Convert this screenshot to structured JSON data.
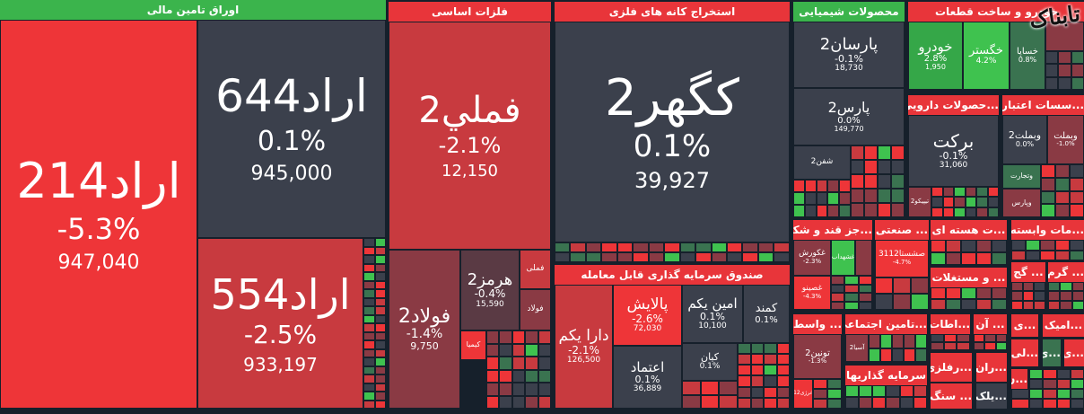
{
  "colors": {
    "up": "#3fc24f",
    "down": "#ee3538",
    "neutral": "#3b404c",
    "header_green": "#3bb44c",
    "header_red": "#e8353a"
  },
  "logo": "تابناک",
  "sectors": {
    "finance": {
      "title": "اوراق تامین مالی",
      "tiles": [
        {
          "name": "اراد214",
          "change": "-5.3%",
          "value": "947,040"
        },
        {
          "name": "اراد644",
          "change": "0.1%",
          "value": "945,000"
        },
        {
          "name": "اراد554",
          "change": "-2.5%",
          "value": "933,197"
        }
      ]
    },
    "metals": {
      "title": "فلزات اساسی",
      "tiles": [
        {
          "name": "فملي2",
          "change": "-2.1%",
          "value": "12,150"
        },
        {
          "name": "فولاد2",
          "change": "-1.4%",
          "value": "9,750"
        },
        {
          "name": "هرمز2",
          "change": "-0.4%",
          "value": "15,590"
        },
        {
          "name": "فملی"
        },
        {
          "name": "فولاد"
        },
        {
          "name": "کیمیا"
        }
      ]
    },
    "mining": {
      "title": "استخراج کانه های فلزی",
      "tiles": [
        {
          "name": "کگهر2",
          "change": "0.1%",
          "value": "39,927"
        }
      ]
    },
    "etf": {
      "title": "صندوق سرمایه گذاری قابل معامله",
      "tiles": [
        {
          "name": "دارا یکم",
          "change": "-2.1%",
          "value": "126,500"
        },
        {
          "name": "پالایش",
          "change": "-2.6%",
          "value": "72,030"
        },
        {
          "name": "امین یکم",
          "change": "0.1%",
          "value": "10,100"
        },
        {
          "name": "کمند",
          "change": "0.1%"
        },
        {
          "name": "اعتماد",
          "change": "0.1%",
          "value": "36,889"
        },
        {
          "name": "کیان",
          "change": "0.1%"
        }
      ]
    },
    "chemical": {
      "title": "محصولات شیمیایی",
      "tiles": [
        {
          "name": "پارسان2",
          "change": "-0.1%",
          "value": "18,730"
        },
        {
          "name": "پارس2",
          "change": "0.0%",
          "value": "149,770"
        },
        {
          "name": "شفن2"
        }
      ]
    },
    "auto": {
      "title": "خودرو و ساخت قطعات",
      "tiles": [
        {
          "name": "خودرو",
          "change": "2.8%",
          "value": "1,950"
        },
        {
          "name": "خگستر",
          "change": "4.2%"
        },
        {
          "name": "خساپا",
          "change": "0.8%"
        }
      ]
    },
    "pharma": {
      "title": "...حصولات دارویی",
      "tiles": [
        {
          "name": "برکت",
          "change": "-0.1%",
          "value": "31,060"
        },
        {
          "name": "تیپیکو2"
        }
      ]
    },
    "banks": {
      "title": "...سسات اعتباری",
      "tiles": [
        {
          "name": "وبملت2",
          "change": "0.0%"
        },
        {
          "name": "وبملت",
          "change": "-1.0%"
        },
        {
          "name": "وتجارت"
        },
        {
          "name": "وپارس"
        }
      ]
    },
    "sugar": {
      "title": "...جز قند و شکر",
      "tiles": [
        {
          "name": "غکورش",
          "change": "-2.3%"
        },
        {
          "name": "غشهداب"
        },
        {
          "name": "غصینو",
          "change": "-4.3%"
        }
      ]
    },
    "industrial": {
      "title": "... صنعتی",
      "tiles": [
        {
          "name": "صشستا3112",
          "change": "-4.7%"
        }
      ]
    },
    "nuclear": {
      "title": "...ت هسته ای"
    },
    "related": {
      "title": "...مات وابسته"
    },
    "realestate": {
      "title": "... و مستغلات"
    },
    "gach": {
      "title": "... گج"
    },
    "garm": {
      "title": "... گرم"
    },
    "wasat": {
      "title": "... واسط",
      "tiles": [
        {
          "name": "تونین2",
          "change": "-1.3%"
        },
        {
          "name": "انرژی12"
        }
      ]
    },
    "social": {
      "title": "...تامین اجتماعی",
      "tiles": [
        {
          "name": "آسیا2"
        }
      ]
    },
    "investment": {
      "title": "سرمایه گذاریها"
    },
    "telecom": {
      "title": "...اطات"
    },
    "an": {
      "title": "... آن"
    },
    "nonmetal": {
      "title": "...رفلزی"
    },
    "ran": {
      "title": "...ران"
    },
    "stone": {
      "title": "... سنگ"
    },
    "silk": {
      "title": "...یلک"
    },
    "s1": {
      "title": "...ی"
    },
    "s2": {
      "title": "...امیک"
    },
    "s3": {
      "title": "...لی"
    },
    "s4": {
      "title": "...ی"
    },
    "s5": {
      "title": "...ی"
    },
    "s6": {
      "title": "...ن"
    }
  }
}
